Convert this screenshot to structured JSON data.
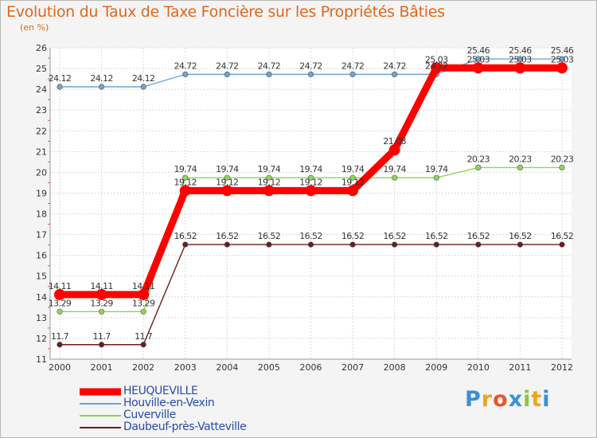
{
  "title": "Evolution du Taux de Taxe Foncière sur les Propriétés Bâties",
  "unit_label": "(en %)",
  "chart_data": {
    "type": "line",
    "title": "Evolution du Taux de Taxe Foncière sur les Propriétés Bâties",
    "ylabel": "(en %)",
    "xlabel": "",
    "ylim": [
      11,
      26
    ],
    "yticks": [
      "11",
      "12",
      "13",
      "14",
      "15",
      "16",
      "17",
      "18",
      "19",
      "20",
      "21",
      "22",
      "23",
      "24",
      "25",
      "26"
    ],
    "categories": [
      "2000",
      "2001",
      "2002",
      "2003",
      "2004",
      "2005",
      "2006",
      "2007",
      "2008",
      "2009",
      "2010",
      "2011",
      "2012"
    ],
    "grid": true,
    "series": [
      {
        "name": "HEUQUEVILLE",
        "color": "#ff0000",
        "values": [
          14.11,
          14.11,
          14.11,
          19.12,
          19.12,
          19.12,
          19.12,
          19.12,
          21.08,
          25.03,
          25.03,
          25.03,
          25.03
        ],
        "labels": [
          "14.11",
          "14.11",
          "14.11",
          "19.12",
          "19.12",
          "19.12",
          "19.12",
          "19.12",
          "21.08",
          "25.03",
          "25.03",
          "25.03",
          "25.03"
        ]
      },
      {
        "name": "Houville-en-Vexin",
        "color": "#6fa3d2",
        "values": [
          24.12,
          24.12,
          24.12,
          24.72,
          24.72,
          24.72,
          24.72,
          24.72,
          24.72,
          24.72,
          25.46,
          25.46,
          25.46
        ],
        "labels": [
          "24.12",
          "24.12",
          "24.12",
          "24.72",
          "24.72",
          "24.72",
          "24.72",
          "24.72",
          "24.72",
          "24.72",
          "25.46",
          "25.46",
          "25.46"
        ]
      },
      {
        "name": "Cuverville",
        "color": "#8fd45c",
        "values": [
          13.29,
          13.29,
          13.29,
          19.74,
          19.74,
          19.74,
          19.74,
          19.74,
          19.74,
          19.74,
          20.23,
          20.23,
          20.23
        ],
        "labels": [
          "13.29",
          "13.29",
          "13.29",
          "19.74",
          "19.74",
          "19.74",
          "19.74",
          "19.74",
          "19.74",
          "19.74",
          "20.23",
          "20.23",
          "20.23"
        ]
      },
      {
        "name": "Daubeuf-près-Vatteville",
        "color": "#6b1c1c",
        "values": [
          11.7,
          11.7,
          11.7,
          16.52,
          16.52,
          16.52,
          16.52,
          16.52,
          16.52,
          16.52,
          16.52,
          16.52,
          16.52
        ],
        "labels": [
          "11.7",
          "11.7",
          "11.7",
          "16.52",
          "16.52",
          "16.52",
          "16.52",
          "16.52",
          "16.52",
          "16.52",
          "16.52",
          "16.52",
          "16.52"
        ]
      }
    ]
  },
  "legend": [
    {
      "label": "HEUQUEVILLE",
      "color": "#ff0000"
    },
    {
      "label": "Houville-en-Vexin",
      "color": "#6fa3d2"
    },
    {
      "label": "Cuverville",
      "color": "#8fd45c"
    },
    {
      "label": "Daubeuf-près-Vatteville",
      "color": "#6b1c1c"
    }
  ],
  "logo": {
    "letters": [
      "P",
      "r",
      "o",
      "x",
      "i",
      "t",
      "i"
    ],
    "colors": [
      "#3a8fd8",
      "#f2a21b",
      "#e8542a",
      "#3a8fd8",
      "#8dc63f",
      "#f2a21b",
      "#3a8fd8"
    ]
  }
}
